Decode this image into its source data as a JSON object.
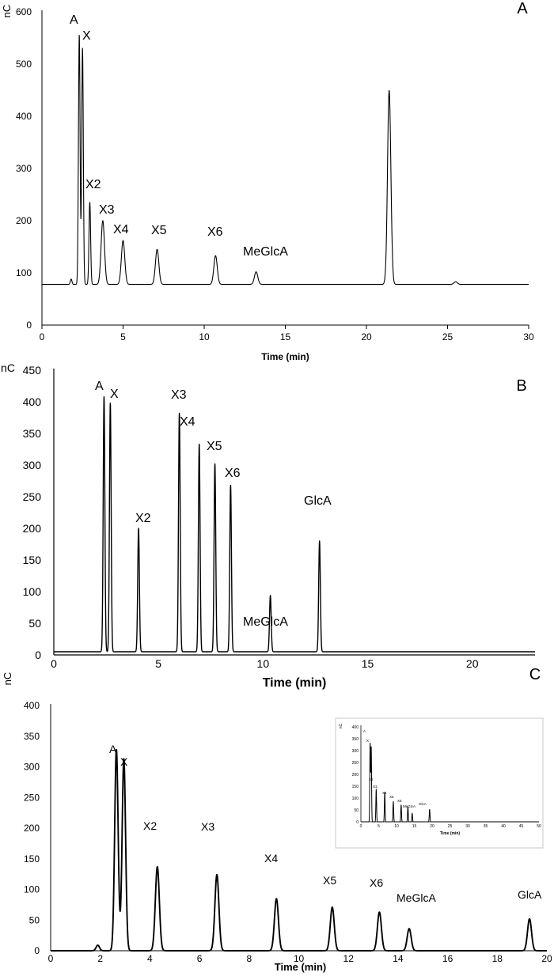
{
  "chart_data": [
    {
      "type": "line",
      "panel": "A",
      "ylabel": "nC",
      "xlabel": "Time (min)",
      "xlim": [
        0,
        30
      ],
      "ylim": [
        0,
        600
      ],
      "xticks": [
        0,
        5,
        10,
        15,
        20,
        25,
        30
      ],
      "yticks": [
        0,
        100,
        200,
        300,
        400,
        500,
        600
      ],
      "baseline": 78,
      "peaks": [
        {
          "label": "A",
          "x": 2.3,
          "y": 555
        },
        {
          "label": "X",
          "x": 2.5,
          "y": 530
        },
        {
          "label": "X2",
          "x": 2.95,
          "y": 235
        },
        {
          "label": "X3",
          "x": 3.75,
          "y": 200
        },
        {
          "label": "X4",
          "x": 5.0,
          "y": 162
        },
        {
          "label": "X5",
          "x": 7.1,
          "y": 145
        },
        {
          "label": "X6",
          "x": 10.7,
          "y": 133
        },
        {
          "label": "MeGlcA",
          "x": 13.2,
          "y": 102
        }
      ],
      "unlabeled_features": [
        {
          "x": 1.8,
          "y": 88
        },
        {
          "x": 21.4,
          "y": 450
        },
        {
          "x": 25.5,
          "y": 83
        }
      ]
    },
    {
      "type": "line",
      "panel": "B",
      "ylabel": "nC",
      "xlabel": "Time (min)",
      "xlim": [
        0,
        23
      ],
      "ylim": [
        0,
        450
      ],
      "xticks": [
        0,
        5,
        10,
        15,
        20
      ],
      "yticks": [
        0,
        50,
        100,
        150,
        200,
        250,
        300,
        350,
        400,
        450
      ],
      "baseline": 5,
      "peaks": [
        {
          "label": "A",
          "x": 2.4,
          "y": 408
        },
        {
          "label": "X",
          "x": 2.7,
          "y": 398
        },
        {
          "label": "X2",
          "x": 4.05,
          "y": 200
        },
        {
          "label": "X3",
          "x": 6.0,
          "y": 382
        },
        {
          "label": "X4",
          "x": 6.95,
          "y": 333
        },
        {
          "label": "X5",
          "x": 7.7,
          "y": 302
        },
        {
          "label": "X6",
          "x": 8.45,
          "y": 268
        },
        {
          "label": "MeGlcA",
          "x": 10.35,
          "y": 94
        },
        {
          "label": "GlcA",
          "x": 12.7,
          "y": 180
        }
      ]
    },
    {
      "type": "line",
      "panel": "C",
      "ylabel": "nC",
      "xlabel": "Time (min)",
      "xlim": [
        0,
        20
      ],
      "ylim": [
        0,
        400
      ],
      "xticks": [
        0,
        2,
        4,
        6,
        8,
        10,
        12,
        14,
        16,
        18,
        20
      ],
      "yticks": [
        0,
        50,
        100,
        150,
        200,
        250,
        300,
        350,
        400
      ],
      "baseline": 0,
      "peaks": [
        {
          "label": "A",
          "x": 2.65,
          "y": 328
        },
        {
          "label": "X",
          "x": 2.95,
          "y": 313
        },
        {
          "label": "X2",
          "x": 4.3,
          "y": 137
        },
        {
          "label": "X3",
          "x": 6.7,
          "y": 124
        },
        {
          "label": "X4",
          "x": 9.1,
          "y": 85
        },
        {
          "label": "X5",
          "x": 11.35,
          "y": 71
        },
        {
          "label": "X6",
          "x": 13.25,
          "y": 63
        },
        {
          "label": "MeGlcA",
          "x": 14.45,
          "y": 36
        },
        {
          "label": "GlcA",
          "x": 19.3,
          "y": 52
        }
      ],
      "unlabeled_features": [
        {
          "x": 1.9,
          "y": 9
        }
      ],
      "inset": {
        "ylabel": "nC",
        "xlabel": "Time (min)",
        "xlim": [
          0,
          50
        ],
        "ylim": [
          0,
          400
        ],
        "xticks": [
          0,
          5,
          10,
          15,
          20,
          25,
          30,
          35,
          40,
          45,
          50
        ],
        "yticks": [
          0,
          50,
          100,
          150,
          200,
          250,
          300,
          350,
          400
        ],
        "peaks": [
          {
            "label": "A",
            "x": 2.6,
            "y": 328
          },
          {
            "label": "X",
            "x": 2.9,
            "y": 313
          },
          {
            "label": "X2",
            "x": 4.3,
            "y": 137
          },
          {
            "label": "X3",
            "x": 6.7,
            "y": 124
          },
          {
            "label": "X4",
            "x": 9.1,
            "y": 85
          },
          {
            "label": "X5",
            "x": 11.3,
            "y": 71
          },
          {
            "label": "X6",
            "x": 13.2,
            "y": 63
          },
          {
            "label": "MeGlcA",
            "x": 14.4,
            "y": 36
          },
          {
            "label": "GlcA",
            "x": 19.3,
            "y": 52
          }
        ]
      }
    }
  ]
}
